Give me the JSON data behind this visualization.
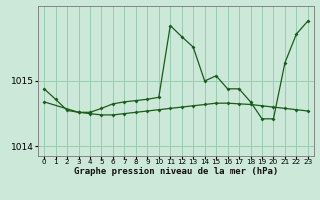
{
  "title": "Graphe pression niveau de la mer (hPa)",
  "background_color": "#cce8d8",
  "grid_color": "#99ccb0",
  "line_color": "#1a5c1a",
  "xlim": [
    -0.5,
    23.5
  ],
  "ylim": [
    1013.85,
    1016.15
  ],
  "yticks": [
    1014,
    1015
  ],
  "xticks": [
    0,
    1,
    2,
    3,
    4,
    5,
    6,
    7,
    8,
    9,
    10,
    11,
    12,
    13,
    14,
    15,
    16,
    17,
    18,
    19,
    20,
    21,
    22,
    23
  ],
  "series1_x": [
    0,
    1,
    2,
    3,
    4,
    5,
    6,
    7,
    8,
    9,
    10,
    11,
    12,
    13,
    14,
    15,
    16,
    17,
    18,
    19,
    20,
    21,
    22,
    23
  ],
  "series1_y": [
    1014.88,
    1014.72,
    1014.55,
    1014.52,
    1014.52,
    1014.58,
    1014.65,
    1014.68,
    1014.7,
    1014.72,
    1014.75,
    1015.85,
    1015.68,
    1015.52,
    1015.0,
    1015.08,
    1014.88,
    1014.88,
    1014.68,
    1014.42,
    1014.42,
    1015.28,
    1015.72,
    1015.92
  ],
  "series2_x": [
    0,
    3,
    4,
    5,
    6,
    7,
    8,
    9,
    10,
    11,
    12,
    13,
    14,
    15,
    16,
    17,
    18,
    19,
    20,
    21,
    22,
    23
  ],
  "series2_y": [
    1014.68,
    1014.52,
    1014.5,
    1014.48,
    1014.48,
    1014.5,
    1014.52,
    1014.54,
    1014.56,
    1014.58,
    1014.6,
    1014.62,
    1014.64,
    1014.66,
    1014.66,
    1014.65,
    1014.64,
    1014.62,
    1014.6,
    1014.58,
    1014.56,
    1014.54
  ]
}
